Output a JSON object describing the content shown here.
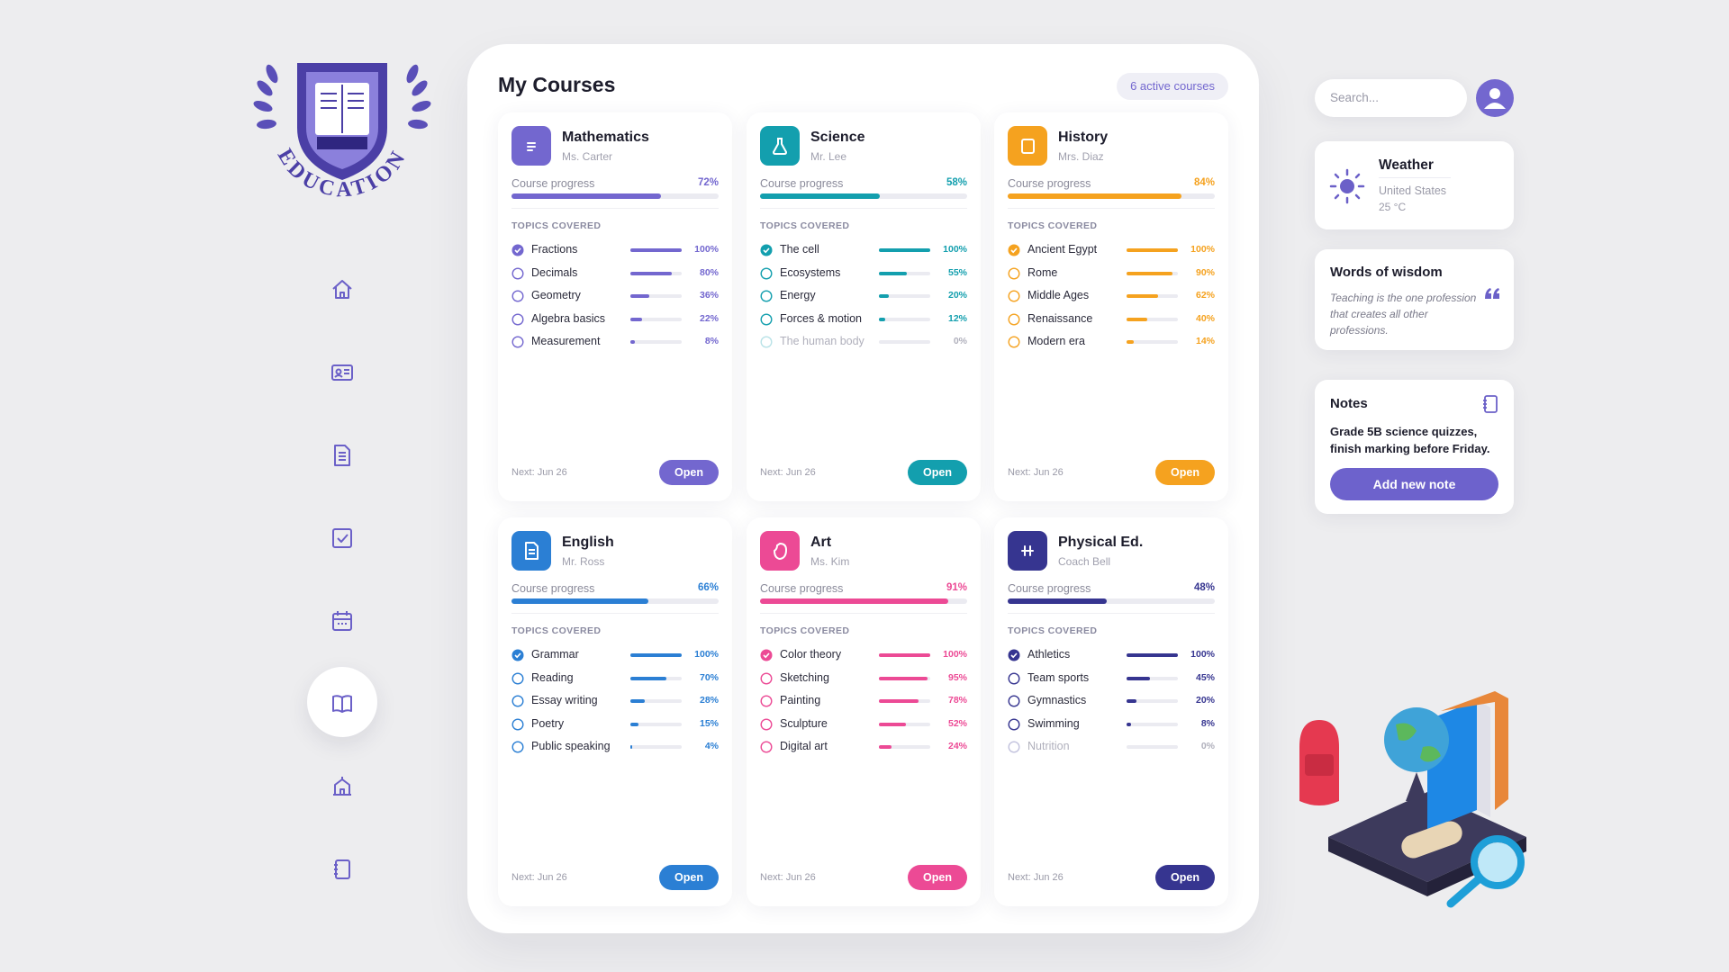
{
  "logo": {
    "text": "EDUCATION"
  },
  "main": {
    "title": "My Courses",
    "badge": "6 active courses"
  },
  "courses": [
    {
      "name": "Mathematics",
      "teacher": "Ms. Carter",
      "color": "#7367cf",
      "progress_label": "Course progress",
      "progress": {
        "value": 72,
        "label": "72%"
      },
      "topics_heading": "TOPICS COVERED",
      "topics": [
        {
          "name": "Fractions",
          "progress": {
            "value": 100,
            "label": "100%"
          }
        },
        {
          "name": "Decimals",
          "progress": {
            "value": 80,
            "label": "80%"
          }
        },
        {
          "name": "Geometry",
          "progress": {
            "value": 36,
            "label": "36%"
          }
        },
        {
          "name": "Algebra basics",
          "progress": {
            "value": 22,
            "label": "22%"
          }
        },
        {
          "name": "Measurement",
          "progress": {
            "value": 8,
            "label": "8%"
          }
        }
      ],
      "next": "Next: Jun 26",
      "button": "Open"
    },
    {
      "name": "Science",
      "teacher": "Mr. Lee",
      "color": "#139fae",
      "progress_label": "Course progress",
      "progress": {
        "value": 58,
        "label": "58%"
      },
      "topics_heading": "TOPICS COVERED",
      "topics": [
        {
          "name": "The cell",
          "progress": {
            "value": 100,
            "label": "100%"
          }
        },
        {
          "name": "Ecosystems",
          "progress": {
            "value": 55,
            "label": "55%"
          }
        },
        {
          "name": "Energy",
          "progress": {
            "value": 20,
            "label": "20%"
          }
        },
        {
          "name": "Forces & motion",
          "progress": {
            "value": 12,
            "label": "12%"
          }
        },
        {
          "name": "The human body",
          "progress": {
            "value": 0,
            "label": "0%"
          }
        }
      ],
      "next": "Next: Jun 26",
      "button": "Open"
    },
    {
      "name": "History",
      "teacher": "Mrs. Diaz",
      "color": "#f5a21f",
      "progress_label": "Course progress",
      "progress": {
        "value": 84,
        "label": "84%"
      },
      "topics_heading": "TOPICS COVERED",
      "topics": [
        {
          "name": "Ancient Egypt",
          "progress": {
            "value": 100,
            "label": "100%"
          }
        },
        {
          "name": "Rome",
          "progress": {
            "value": 90,
            "label": "90%"
          }
        },
        {
          "name": "Middle Ages",
          "progress": {
            "value": 62,
            "label": "62%"
          }
        },
        {
          "name": "Renaissance",
          "progress": {
            "value": 40,
            "label": "40%"
          }
        },
        {
          "name": "Modern era",
          "progress": {
            "value": 14,
            "label": "14%"
          }
        }
      ],
      "next": "Next: Jun 26",
      "button": "Open"
    },
    {
      "name": "English",
      "teacher": "Mr. Ross",
      "color": "#2b7fd4",
      "progress_label": "Course progress",
      "progress": {
        "value": 66,
        "label": "66%"
      },
      "topics_heading": "TOPICS COVERED",
      "topics": [
        {
          "name": "Grammar",
          "progress": {
            "value": 100,
            "label": "100%"
          }
        },
        {
          "name": "Reading",
          "progress": {
            "value": 70,
            "label": "70%"
          }
        },
        {
          "name": "Essay writing",
          "progress": {
            "value": 28,
            "label": "28%"
          }
        },
        {
          "name": "Poetry",
          "progress": {
            "value": 15,
            "label": "15%"
          }
        },
        {
          "name": "Public speaking",
          "progress": {
            "value": 4,
            "label": "4%"
          }
        }
      ],
      "next": "Next: Jun 26",
      "button": "Open"
    },
    {
      "name": "Art",
      "teacher": "Ms. Kim",
      "color": "#ec4a95",
      "progress_label": "Course progress",
      "progress": {
        "value": 91,
        "label": "91%"
      },
      "topics_heading": "TOPICS COVERED",
      "topics": [
        {
          "name": "Color theory",
          "progress": {
            "value": 100,
            "label": "100%"
          }
        },
        {
          "name": "Sketching",
          "progress": {
            "value": 95,
            "label": "95%"
          }
        },
        {
          "name": "Painting",
          "progress": {
            "value": 78,
            "label": "78%"
          }
        },
        {
          "name": "Sculpture",
          "progress": {
            "value": 52,
            "label": "52%"
          }
        },
        {
          "name": "Digital art",
          "progress": {
            "value": 24,
            "label": "24%"
          }
        }
      ],
      "next": "Next: Jun 26",
      "button": "Open"
    },
    {
      "name": "Physical Ed.",
      "teacher": "Coach Bell",
      "color": "#363590",
      "progress_label": "Course progress",
      "progress": {
        "value": 48,
        "label": "48%"
      },
      "topics_heading": "TOPICS COVERED",
      "topics": [
        {
          "name": "Athletics",
          "progress": {
            "value": 100,
            "label": "100%"
          }
        },
        {
          "name": "Team sports",
          "progress": {
            "value": 45,
            "label": "45%"
          }
        },
        {
          "name": "Gymnastics",
          "progress": {
            "value": 20,
            "label": "20%"
          }
        },
        {
          "name": "Swimming",
          "progress": {
            "value": 8,
            "label": "8%"
          }
        },
        {
          "name": "Nutrition",
          "progress": {
            "value": 0,
            "label": "0%"
          }
        }
      ],
      "next": "Next: Jun 26",
      "button": "Open"
    }
  ],
  "search": {
    "placeholder": "Search..."
  },
  "weather": {
    "title": "Weather",
    "location": "United States",
    "temperature": "25 °C"
  },
  "wisdom": {
    "title": "Words of wisdom",
    "quote": "Teaching is the one profession that creates all other professions."
  },
  "notes": {
    "title": "Notes",
    "text": "Grade 5B science quizzes, finish marking before Friday.",
    "button": "Add new note"
  }
}
